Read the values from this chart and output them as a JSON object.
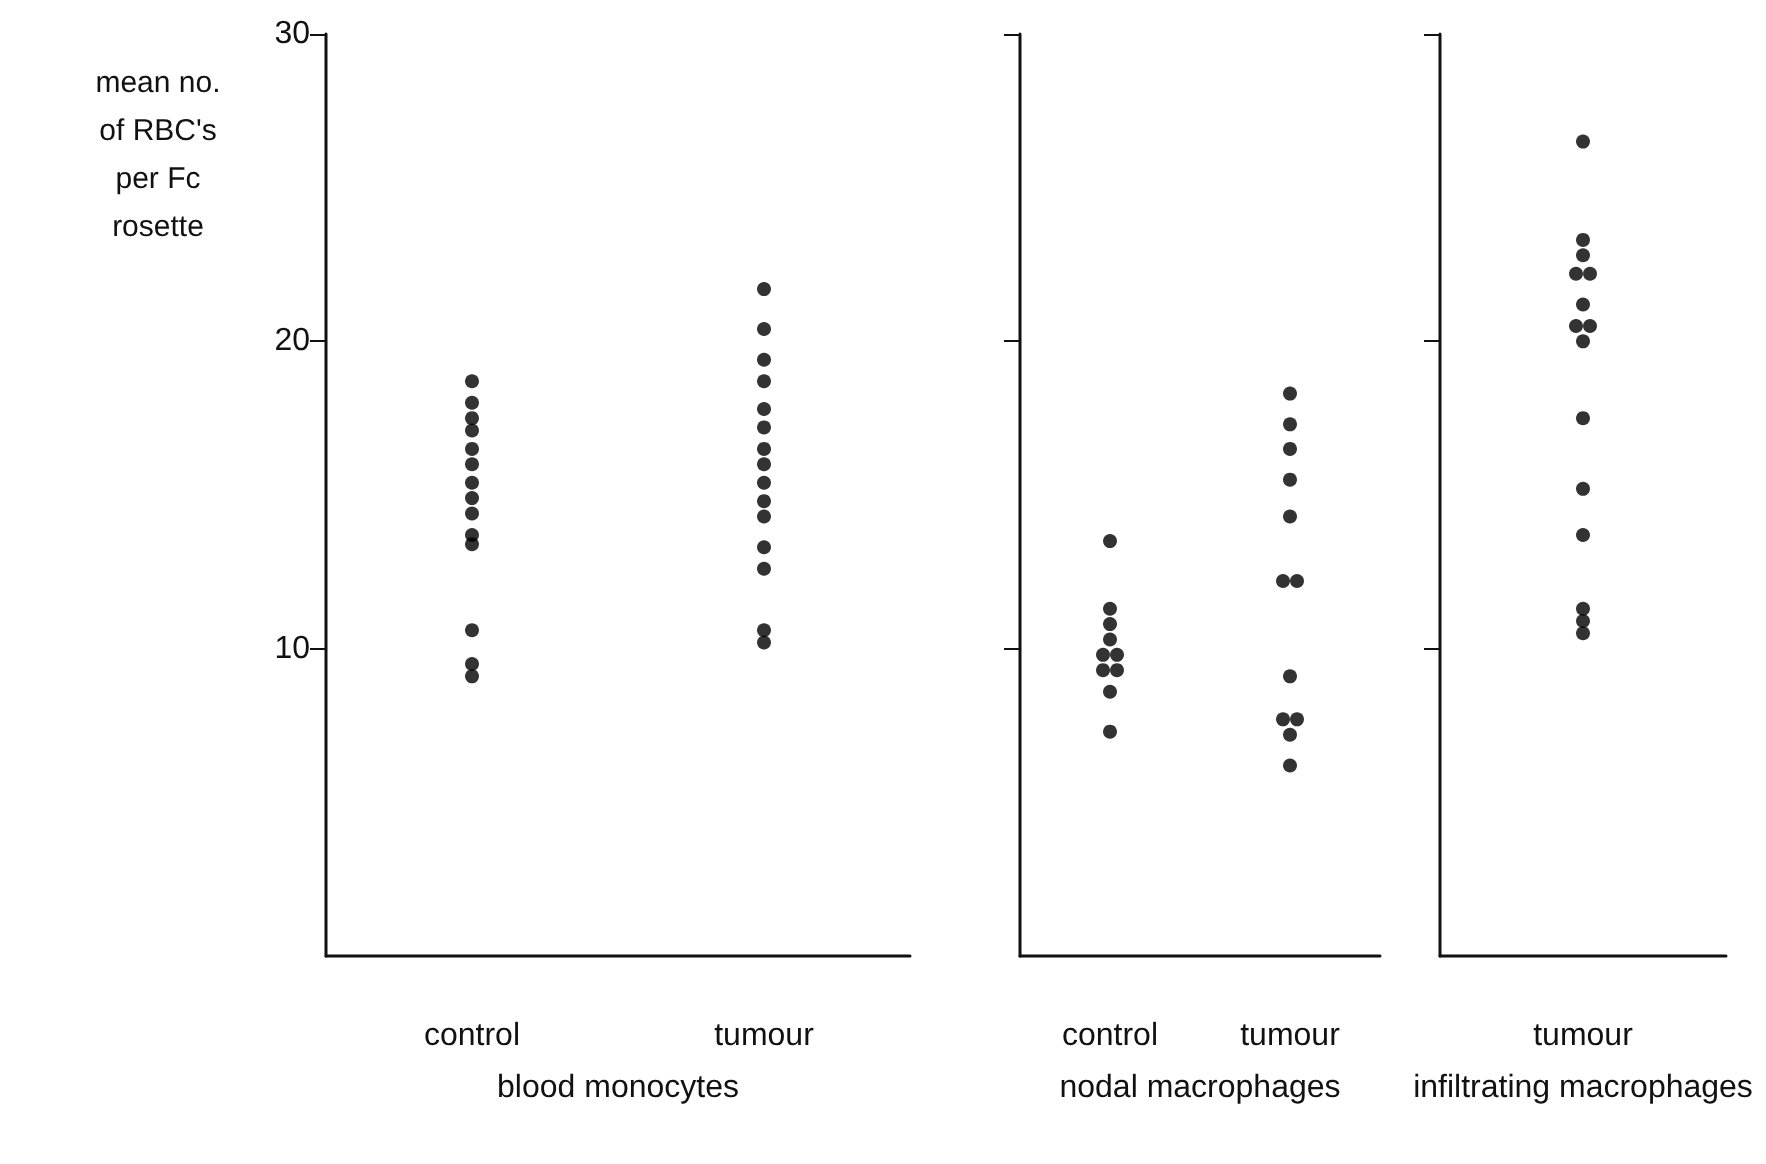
{
  "chart_data": [
    {
      "type": "scatter",
      "ylabel": "mean no. of RBC's per Fc rosette",
      "xlabel": "blood monocytes",
      "categories": [
        "control",
        "tumour"
      ],
      "ylim": [
        0,
        30
      ],
      "yticks": [
        10,
        20,
        30
      ],
      "grid": false,
      "marker": "circle",
      "series": [
        {
          "color": "#000000",
          "x": [
            "control",
            "control",
            "control",
            "control",
            "control",
            "control",
            "control",
            "control",
            "control",
            "control",
            "control",
            "control",
            "control",
            "control"
          ],
          "values": [
            18.7,
            18.0,
            17.5,
            17.1,
            16.5,
            16.0,
            15.4,
            14.9,
            14.4,
            13.7,
            13.4,
            10.6,
            9.5,
            9.1
          ]
        },
        {
          "color": "#000000",
          "x": [
            "tumour",
            "tumour",
            "tumour",
            "tumour",
            "tumour",
            "tumour",
            "tumour",
            "tumour",
            "tumour",
            "tumour",
            "tumour",
            "tumour",
            "tumour",
            "tumour",
            "tumour"
          ],
          "values": [
            21.7,
            20.4,
            19.4,
            18.7,
            17.8,
            17.2,
            16.5,
            16.0,
            15.4,
            14.8,
            14.3,
            13.3,
            12.6,
            10.6,
            10.2
          ]
        }
      ]
    },
    {
      "type": "scatter",
      "xlabel": "nodal macrophages",
      "categories": [
        "control",
        "tumour"
      ],
      "ylim": [
        0,
        30
      ],
      "yticks": [
        10,
        20,
        30
      ],
      "tick_labels": "x",
      "grid": false,
      "marker": "circle",
      "series": [
        {
          "color": "#000000",
          "x": [
            "control",
            "control",
            "control",
            "control",
            "control",
            "control",
            "control",
            "control",
            "control",
            "control"
          ],
          "values": [
            13.5,
            11.3,
            10.8,
            10.3,
            9.8,
            9.8,
            9.3,
            9.3,
            8.6,
            7.3
          ]
        },
        {
          "color": "#000000",
          "x": [
            "tumour",
            "tumour",
            "tumour",
            "tumour",
            "tumour",
            "tumour",
            "tumour",
            "tumour",
            "tumour",
            "tumour",
            "tumour",
            "tumour"
          ],
          "values": [
            18.3,
            17.3,
            16.5,
            15.5,
            14.3,
            12.2,
            12.2,
            9.1,
            7.7,
            7.7,
            7.2,
            6.2
          ]
        }
      ]
    },
    {
      "type": "scatter",
      "xlabel": "infiltrating macrophages",
      "categories": [
        "tumour"
      ],
      "ylim": [
        0,
        30
      ],
      "yticks": [
        10,
        20,
        30
      ],
      "tick_labels": "x",
      "grid": false,
      "marker": "circle",
      "series": [
        {
          "color": "#000000",
          "x": [
            "tumour",
            "tumour",
            "tumour",
            "tumour",
            "tumour",
            "tumour",
            "tumour",
            "tumour",
            "tumour",
            "tumour",
            "tumour",
            "tumour",
            "tumour",
            "tumour",
            "tumour"
          ],
          "values": [
            26.5,
            23.3,
            22.8,
            22.2,
            22.2,
            21.2,
            20.5,
            20.5,
            20.0,
            17.5,
            15.2,
            13.7,
            11.3,
            10.9,
            10.5
          ]
        }
      ]
    }
  ]
}
